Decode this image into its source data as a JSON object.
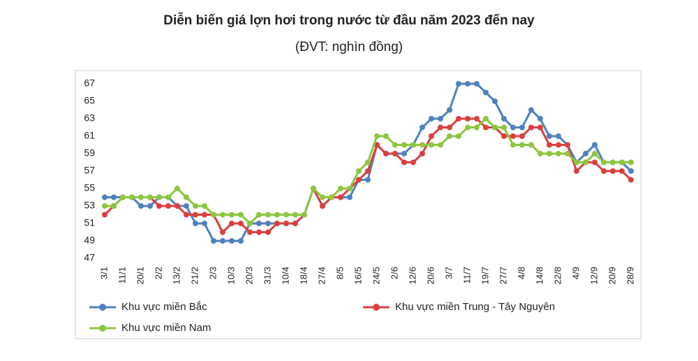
{
  "chart_data": {
    "type": "line",
    "title": "Diễn biến giá lợn hơi trong nước từ đầu năm 2023 đến nay",
    "subtitle": "(ĐVT: nghìn đồng)",
    "categories": [
      "3/1",
      null,
      "11/1",
      null,
      "20/1",
      null,
      "2/2",
      null,
      "13/2",
      null,
      "21/2",
      null,
      "2/3",
      null,
      "10/3",
      null,
      "20/3",
      null,
      "31/3",
      null,
      "10/4",
      null,
      "18/4",
      null,
      "27/4",
      null,
      "8/5",
      null,
      "16/5",
      null,
      "24/5",
      null,
      "2/6",
      null,
      "12/6",
      null,
      "20/6",
      null,
      "3/7",
      null,
      "11/7",
      null,
      "19/7",
      null,
      "27/7",
      null,
      "4/8",
      null,
      "14/8",
      null,
      "22/8",
      null,
      "4/9",
      null,
      "12/9",
      null,
      "20/9",
      null,
      "28/9"
    ],
    "series": [
      {
        "name": "Khu vực miền Bắc",
        "color": "#4f81bd",
        "values": [
          54,
          54,
          54,
          54,
          53,
          53,
          54,
          54,
          53,
          53,
          51,
          51,
          49,
          49,
          49,
          49,
          51,
          51,
          51,
          51,
          51,
          51,
          52,
          55,
          53,
          54,
          54,
          54,
          56,
          56,
          60,
          59,
          59,
          59,
          60,
          62,
          63,
          63,
          64,
          67,
          67,
          67,
          66,
          65,
          63,
          62,
          62,
          64,
          63,
          61,
          61,
          60,
          58,
          59,
          60,
          58,
          58,
          58,
          57
        ]
      },
      {
        "name": "Khu vực miền Trung - Tây Nguyên",
        "color": "#d9403f",
        "values": [
          52,
          53,
          54,
          54,
          54,
          54,
          53,
          53,
          53,
          52,
          52,
          52,
          52,
          50,
          51,
          51,
          50,
          50,
          50,
          51,
          51,
          51,
          52,
          55,
          53,
          54,
          54,
          55,
          56,
          57,
          60,
          59,
          59,
          58,
          58,
          59,
          61,
          62,
          62,
          63,
          63,
          63,
          62,
          62,
          61,
          61,
          61,
          62,
          62,
          60,
          60,
          60,
          57,
          58,
          58,
          57,
          57,
          57,
          56
        ]
      },
      {
        "name": "Khu vực miền Nam",
        "color": "#8dc63f",
        "values": [
          53,
          53,
          54,
          54,
          54,
          54,
          54,
          54,
          55,
          54,
          53,
          53,
          52,
          52,
          52,
          52,
          51,
          52,
          52,
          52,
          52,
          52,
          52,
          55,
          54,
          54,
          55,
          55,
          57,
          58,
          61,
          61,
          60,
          60,
          60,
          60,
          60,
          60,
          61,
          61,
          62,
          62,
          63,
          62,
          62,
          60,
          60,
          60,
          59,
          59,
          59,
          59,
          58,
          58,
          59,
          58,
          58,
          58,
          58
        ]
      }
    ],
    "ylim": [
      47,
      67
    ],
    "yticks": [
      47,
      49,
      51,
      53,
      55,
      57,
      59,
      61,
      63,
      65,
      67
    ],
    "grid": false
  }
}
